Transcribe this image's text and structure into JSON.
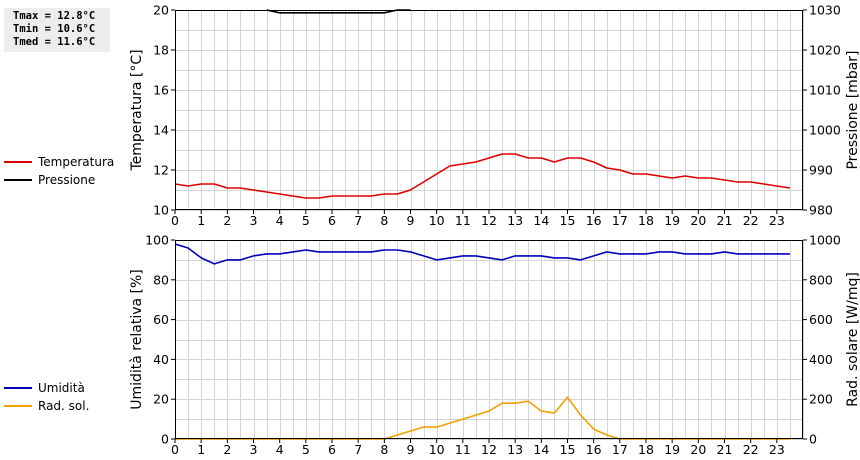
{
  "stats": {
    "tmax": "Tmax = 12.8°C",
    "tmin": "Tmin = 10.6°C",
    "tmed": "Tmed = 11.6°C"
  },
  "colors": {
    "temperature": "#dd0000",
    "pressure": "#000000",
    "humidity": "#0000bb",
    "solar": "#f0a000",
    "grid": "#d4d4d4"
  },
  "chart_data": [
    {
      "type": "line",
      "xlabel": "",
      "x_ticks": [
        0,
        1,
        2,
        3,
        4,
        5,
        6,
        7,
        8,
        9,
        10,
        11,
        12,
        13,
        14,
        15,
        16,
        17,
        18,
        19,
        20,
        21,
        22,
        23
      ],
      "xlim": [
        0,
        24
      ],
      "grid": true,
      "legend_position": "left",
      "left_axis": {
        "label": "Temperatura [°C]",
        "range": [
          10,
          20
        ],
        "ticks": [
          10,
          12,
          14,
          16,
          18,
          20
        ]
      },
      "right_axis": {
        "label": "Pressione [mbar]",
        "range": [
          980,
          1030
        ],
        "ticks": [
          980,
          990,
          1000,
          1010,
          1020,
          1030
        ]
      },
      "series": [
        {
          "name": "Temperatura",
          "axis": "left",
          "color": "#dd0000",
          "x": [
            0,
            0.5,
            1,
            1.5,
            2,
            2.5,
            3,
            3.5,
            4,
            4.5,
            5,
            5.5,
            6,
            6.5,
            7,
            7.5,
            8,
            8.5,
            9,
            9.5,
            10,
            10.5,
            11,
            11.5,
            12,
            12.5,
            13,
            13.5,
            14,
            14.5,
            15,
            15.5,
            16,
            16.5,
            17,
            17.5,
            18,
            18.5,
            19,
            19.5,
            20,
            20.5,
            21,
            21.5,
            22,
            22.5,
            23,
            23.5
          ],
          "y": [
            11.3,
            11.2,
            11.3,
            11.3,
            11.1,
            11.1,
            11.0,
            10.9,
            10.8,
            10.7,
            10.6,
            10.6,
            10.7,
            10.7,
            10.7,
            10.7,
            10.8,
            10.8,
            11.0,
            11.4,
            11.8,
            12.2,
            12.3,
            12.4,
            12.6,
            12.8,
            12.8,
            12.6,
            12.6,
            12.4,
            12.6,
            12.6,
            12.4,
            12.1,
            12.0,
            11.8,
            11.8,
            11.7,
            11.6,
            11.7,
            11.6,
            11.6,
            11.5,
            11.4,
            11.4,
            11.3,
            11.2,
            11.1
          ]
        },
        {
          "name": "Pressione",
          "axis": "right",
          "color": "#000000",
          "x": [
            3.5,
            4,
            5,
            6,
            7,
            8,
            8.5,
            9
          ],
          "y": [
            1030,
            1029.3,
            1029.3,
            1029.3,
            1029.3,
            1029.3,
            1030,
            1030
          ]
        }
      ]
    },
    {
      "type": "line",
      "xlabel": "",
      "x_ticks": [
        0,
        1,
        2,
        3,
        4,
        5,
        6,
        7,
        8,
        9,
        10,
        11,
        12,
        13,
        14,
        15,
        16,
        17,
        18,
        19,
        20,
        21,
        22,
        23
      ],
      "xlim": [
        0,
        24
      ],
      "grid": true,
      "legend_position": "left",
      "left_axis": {
        "label": "Umidità relativa [%]",
        "range": [
          0,
          100
        ],
        "ticks": [
          0,
          20,
          40,
          60,
          80,
          100
        ]
      },
      "right_axis": {
        "label": "Rad. solare [W/mq]",
        "range": [
          0,
          1000
        ],
        "ticks": [
          0,
          200,
          400,
          600,
          800,
          1000
        ]
      },
      "series": [
        {
          "name": "Umidità",
          "axis": "left",
          "color": "#0000bb",
          "x": [
            0,
            0.5,
            1,
            1.5,
            2,
            2.5,
            3,
            3.5,
            4,
            4.5,
            5,
            5.5,
            6,
            6.5,
            7,
            7.5,
            8,
            8.5,
            9,
            9.5,
            10,
            10.5,
            11,
            11.5,
            12,
            12.5,
            13,
            13.5,
            14,
            14.5,
            15,
            15.5,
            16,
            16.5,
            17,
            17.5,
            18,
            18.5,
            19,
            19.5,
            20,
            20.5,
            21,
            21.5,
            22,
            22.5,
            23,
            23.5
          ],
          "y": [
            98,
            96,
            91,
            88,
            90,
            90,
            92,
            93,
            93,
            94,
            95,
            94,
            94,
            94,
            94,
            94,
            95,
            95,
            94,
            92,
            90,
            91,
            92,
            92,
            91,
            90,
            92,
            92,
            92,
            91,
            91,
            90,
            92,
            94,
            93,
            93,
            93,
            94,
            94,
            93,
            93,
            93,
            94,
            93,
            93,
            93,
            93,
            93
          ]
        },
        {
          "name": "Rad. sol.",
          "axis": "right",
          "color": "#f0a000",
          "x": [
            0,
            1,
            2,
            3,
            4,
            5,
            6,
            7,
            8,
            8.5,
            9,
            9.5,
            10,
            10.5,
            11,
            11.5,
            12,
            12.5,
            13,
            13.5,
            14,
            14.5,
            15,
            15.5,
            16,
            16.5,
            17,
            18,
            19,
            20,
            21,
            22,
            23,
            23.5
          ],
          "y": [
            0,
            0,
            0,
            0,
            0,
            0,
            0,
            0,
            0,
            20,
            40,
            60,
            60,
            80,
            100,
            120,
            140,
            180,
            180,
            190,
            140,
            130,
            210,
            120,
            50,
            20,
            0,
            0,
            0,
            0,
            0,
            0,
            0,
            0
          ]
        }
      ]
    }
  ]
}
